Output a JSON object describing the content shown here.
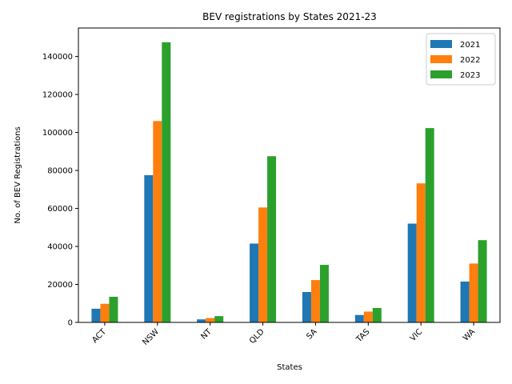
{
  "chart_data": {
    "type": "bar",
    "title": "BEV registrations by States 2021-23",
    "xlabel": "States",
    "ylabel": "No. of BEV Registrations",
    "categories": [
      "ACT",
      "NSW",
      "NT",
      "QLD",
      "SA",
      "TAS",
      "VIC",
      "WA"
    ],
    "series": [
      {
        "name": "2021",
        "color": "#1f77b4",
        "values": [
          7200,
          77500,
          1600,
          41500,
          16000,
          3900,
          52000,
          21500
        ]
      },
      {
        "name": "2022",
        "color": "#ff7f0e",
        "values": [
          9800,
          106000,
          2300,
          60500,
          22300,
          5700,
          73200,
          31000
        ]
      },
      {
        "name": "2023",
        "color": "#2ca02c",
        "values": [
          13500,
          147500,
          3300,
          87500,
          30300,
          7600,
          102300,
          43300
        ]
      }
    ],
    "ylim": [
      0,
      155000
    ],
    "yticks": [
      0,
      20000,
      40000,
      60000,
      80000,
      100000,
      120000,
      140000
    ],
    "ytick_labels": [
      "0",
      "20000",
      "40000",
      "60000",
      "80000",
      "100000",
      "120000",
      "140000"
    ],
    "legend_position": "top-right",
    "grid": false
  }
}
